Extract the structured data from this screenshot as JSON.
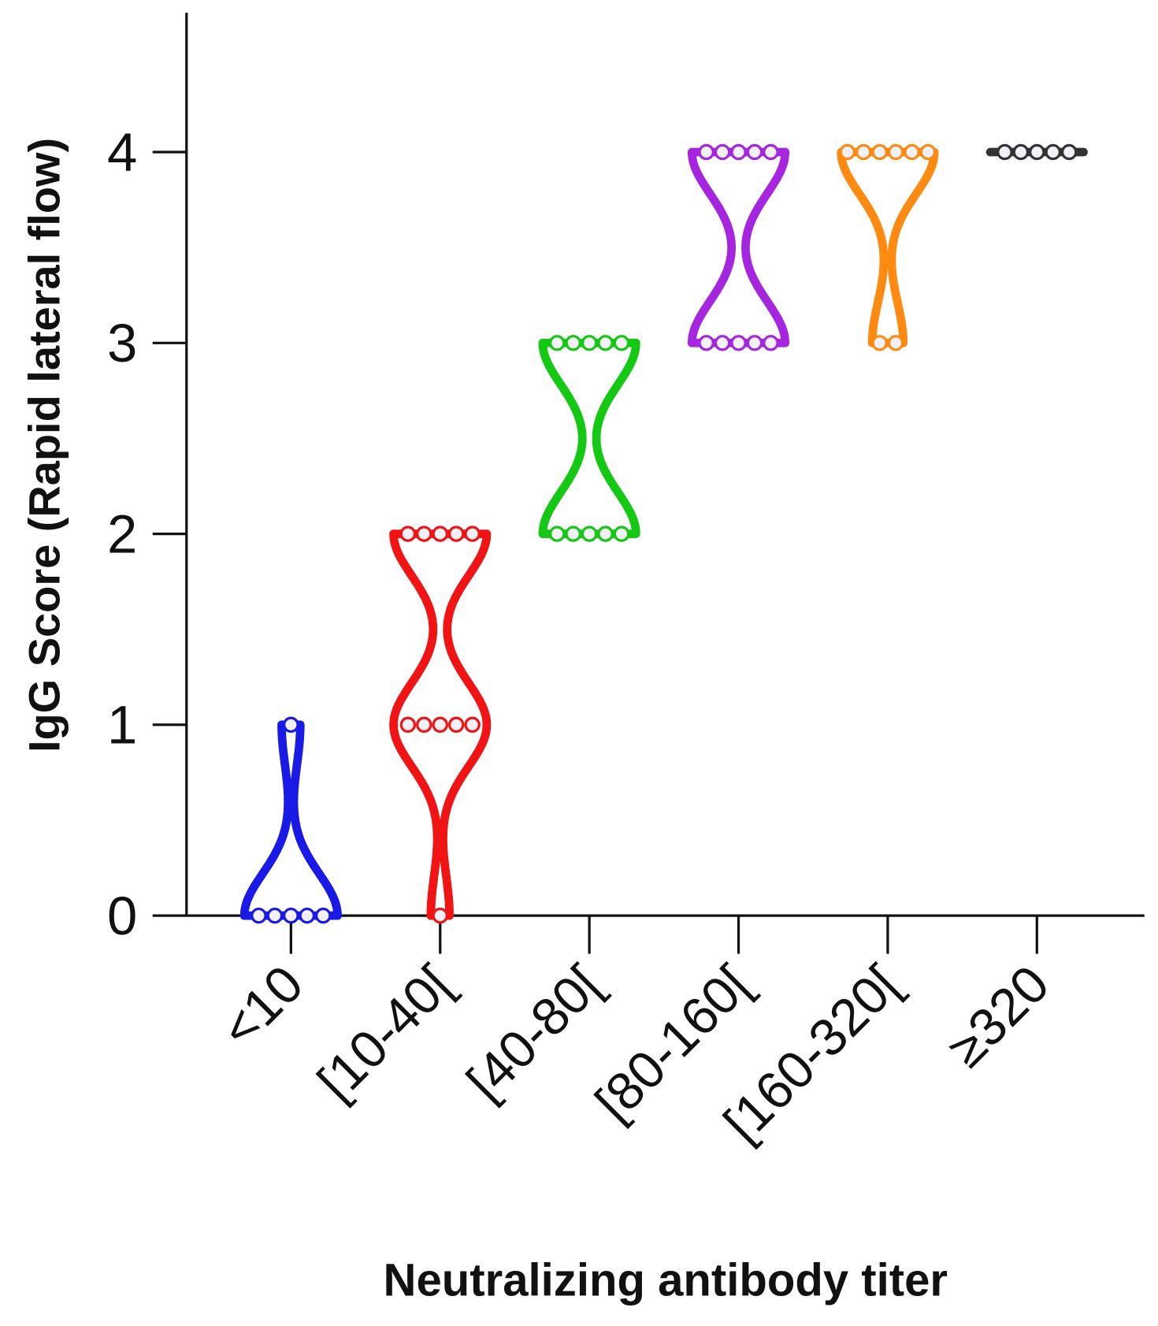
{
  "chart_data": {
    "type": "violin",
    "x_label": "Neutralizing antibody titer",
    "y_label": "IgG Score (Rapid lateral flow)",
    "categories": [
      "<10",
      "[10-40[",
      "[40-80[",
      "[80-160[",
      "[160-320[",
      "≥320"
    ],
    "values": [
      [
        0,
        0,
        0,
        0,
        0,
        1
      ],
      [
        0,
        1,
        1,
        1,
        1,
        1,
        2,
        2,
        2,
        2,
        2
      ],
      [
        2,
        2,
        2,
        2,
        2,
        3,
        3,
        3,
        3,
        3
      ],
      [
        3,
        3,
        3,
        3,
        3,
        4,
        4,
        4,
        4,
        4
      ],
      [
        3,
        3,
        4,
        4,
        4,
        4,
        4,
        4
      ],
      [
        4,
        4,
        4,
        4,
        4
      ]
    ],
    "colors": [
      "#1a1ae6",
      "#f01414",
      "#14c814",
      "#a626e0",
      "#ff8a12",
      "#333333"
    ],
    "ylim": [
      0,
      4.73
    ],
    "yticks": [
      0,
      1,
      2,
      3,
      4
    ]
  }
}
